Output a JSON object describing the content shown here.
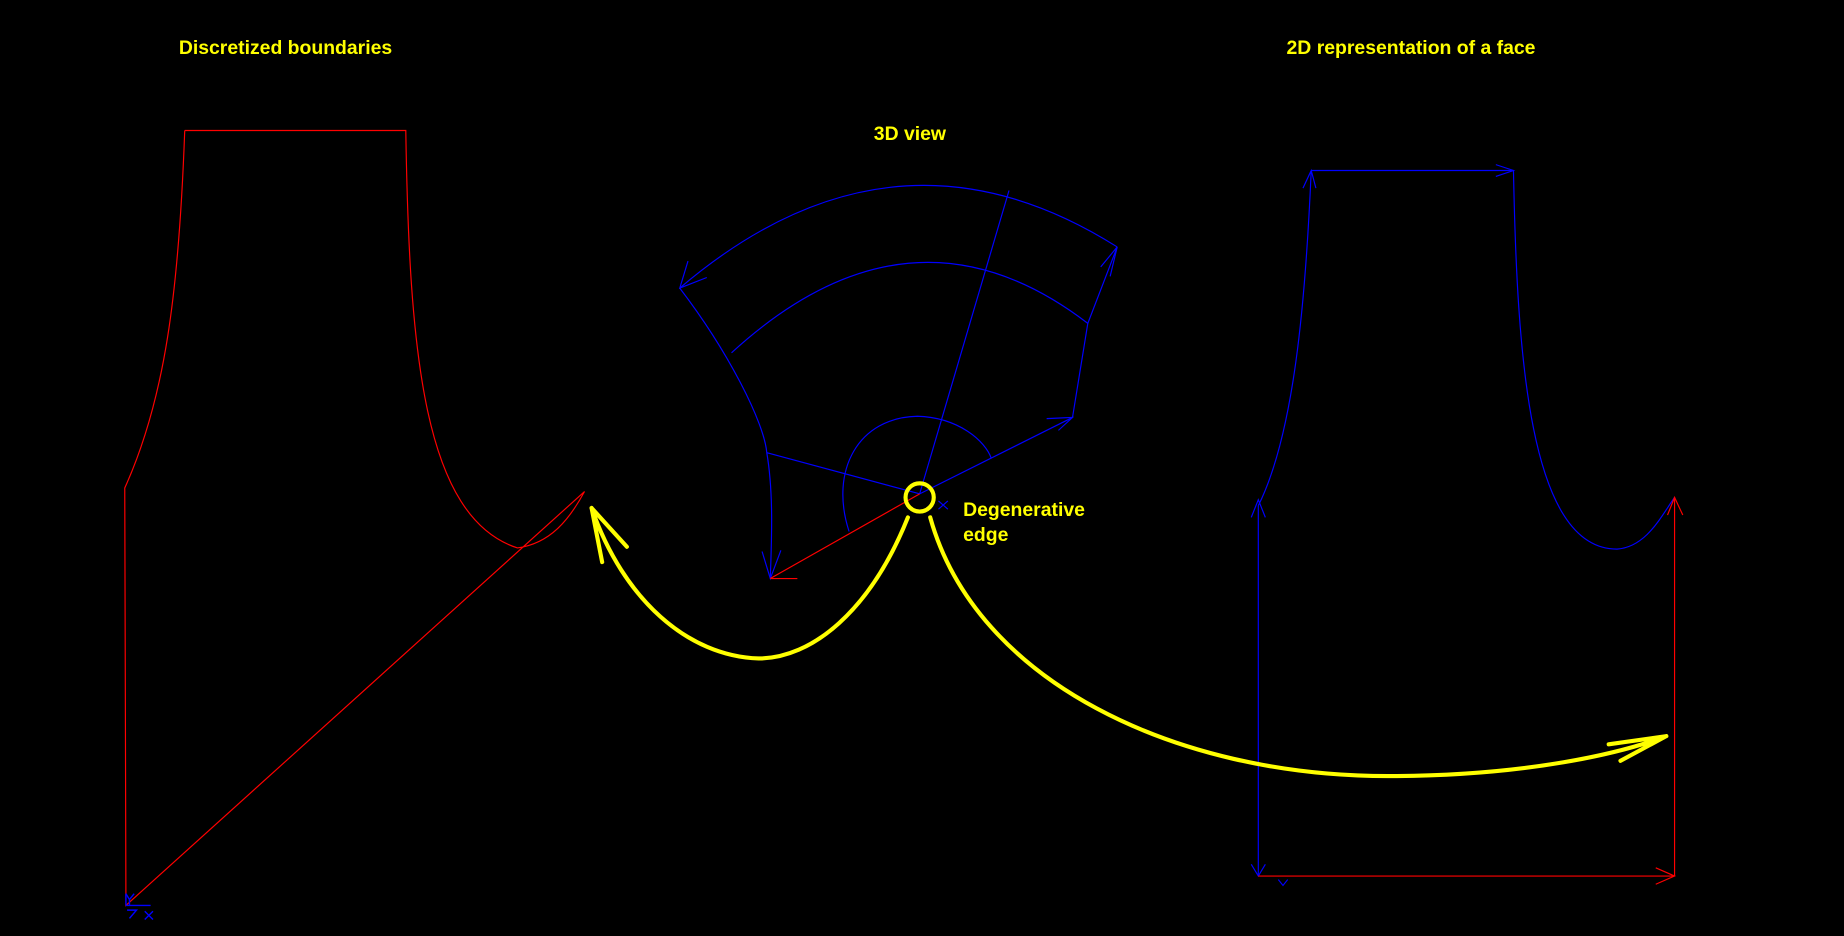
{
  "labels": {
    "left_title": "Discretized boundaries",
    "center_title": "3D view",
    "right_title": "2D representation of a face",
    "callout_line1": "Degenerative",
    "callout_line2": "edge"
  },
  "axis_labels": {
    "x": "X",
    "y": "Y"
  },
  "colors": {
    "background": "#000000",
    "annotation": "#ffff00",
    "boundary_red": "#ff0000",
    "boundary_blue": "#0000ff"
  }
}
